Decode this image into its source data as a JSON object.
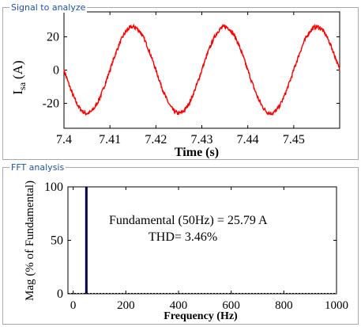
{
  "panels": {
    "signal": {
      "title": "Signal to analyze"
    },
    "fft": {
      "title": "FFT analysis"
    }
  },
  "colors": {
    "signal_line": "#ff0000",
    "fft_bar": "#00004a",
    "group_title": "#2050b0"
  },
  "chart_data": [
    {
      "type": "line",
      "title": "",
      "xlabel": "Time (s)",
      "ylabel": "I_sa (A)",
      "ylabel_main": "I",
      "ylabel_sub": "sa",
      "ylabel_unit": "(A)",
      "xlim": [
        7.4,
        7.46
      ],
      "ylim": [
        -35,
        35
      ],
      "xticks": [
        7.4,
        7.41,
        7.42,
        7.43,
        7.44,
        7.45
      ],
      "xtick_labels": [
        "7.4",
        "7.41",
        "7.42",
        "7.43",
        "7.44",
        "7.45"
      ],
      "yticks": [
        20,
        0,
        -20
      ],
      "ytick_labels": [
        "20",
        "0",
        "-20"
      ],
      "grid": false,
      "series": [
        {
          "frequency_hz": 50,
          "amplitude": 25.79,
          "peaks": [
            [
              7.415,
              26
            ],
            [
              7.435,
              26
            ],
            [
              7.455,
              26
            ]
          ],
          "troughs": [
            [
              7.405,
              -26
            ],
            [
              7.425,
              -26
            ],
            [
              7.445,
              -26
            ]
          ]
        }
      ]
    },
    {
      "type": "bar",
      "title": "",
      "xlabel": "Frequency (Hz)",
      "ylabel": "Mag (% of Fundamental)",
      "xlim": [
        -20,
        1000
      ],
      "ylim": [
        0,
        100
      ],
      "xticks": [
        0,
        200,
        400,
        600,
        800,
        1000
      ],
      "xtick_labels": [
        "0",
        "200",
        "400",
        "600",
        "800",
        "1000"
      ],
      "yticks": [
        100,
        50,
        0
      ],
      "ytick_labels": [
        "100",
        "50",
        "0"
      ],
      "grid": false,
      "bars": [
        {
          "x": 50,
          "value": 100
        }
      ],
      "annotations": {
        "fundamental": "Fundamental (50Hz) = 25.79 A",
        "thd": "THD= 3.46%"
      }
    }
  ]
}
